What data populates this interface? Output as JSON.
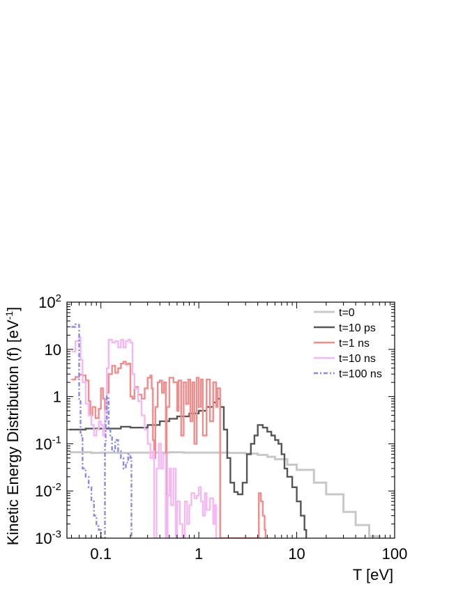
{
  "chart_data": {
    "type": "line",
    "title": "",
    "xlabel": "T [eV]",
    "ylabel_main": "Kinetic Energy Distribution (f) [eV",
    "ylabel_sup": "-1",
    "ylabel_end": "]",
    "xscale": "log",
    "yscale": "log",
    "xlim": [
      0.045,
      100
    ],
    "ylim": [
      0.001,
      100
    ],
    "x_ticks": [
      {
        "value": 0.1,
        "label": "0.1"
      },
      {
        "value": 1,
        "label": "1"
      },
      {
        "value": 10,
        "label": "10"
      },
      {
        "value": 100,
        "label": "100"
      }
    ],
    "y_ticks": [
      {
        "value": 0.001,
        "base": "10",
        "exp": "-3"
      },
      {
        "value": 0.01,
        "base": "10",
        "exp": "-2"
      },
      {
        "value": 0.1,
        "base": "10",
        "exp": "-1"
      },
      {
        "value": 1,
        "base": "1",
        "exp": ""
      },
      {
        "value": 10,
        "base": "10",
        "exp": ""
      },
      {
        "value": 100,
        "base": "10",
        "exp": "2"
      }
    ],
    "legend_position": "top-right",
    "grid": false,
    "series": [
      {
        "name": "t=0",
        "color": "#c8c8c8",
        "dash": "",
        "points": [
          [
            0.048,
            0.066
          ],
          [
            0.06,
            0.066
          ],
          [
            0.08,
            0.064
          ],
          [
            0.1,
            0.065
          ],
          [
            0.15,
            0.064
          ],
          [
            0.2,
            0.065
          ],
          [
            0.3,
            0.065
          ],
          [
            0.5,
            0.066
          ],
          [
            0.7,
            0.065
          ],
          [
            1,
            0.065
          ],
          [
            1.5,
            0.065
          ],
          [
            2,
            0.064
          ],
          [
            3,
            0.062
          ],
          [
            4,
            0.058
          ],
          [
            5,
            0.053
          ],
          [
            6,
            0.047
          ],
          [
            8,
            0.036
          ],
          [
            10,
            0.028
          ],
          [
            15,
            0.015
          ],
          [
            20,
            0.0085
          ],
          [
            30,
            0.0036
          ],
          [
            40,
            0.0019
          ],
          [
            55,
            0.0011
          ],
          [
            70,
            0.001
          ]
        ]
      },
      {
        "name": "t=10 ps",
        "color": "#555555",
        "dash": "",
        "points": [
          [
            0.048,
            0.2
          ],
          [
            0.07,
            0.21
          ],
          [
            0.1,
            0.21
          ],
          [
            0.13,
            0.21
          ],
          [
            0.16,
            0.23
          ],
          [
            0.2,
            0.22
          ],
          [
            0.25,
            0.22
          ],
          [
            0.3,
            0.25
          ],
          [
            0.4,
            0.3
          ],
          [
            0.5,
            0.34
          ],
          [
            0.6,
            0.38
          ],
          [
            0.8,
            0.44
          ],
          [
            1,
            0.5
          ],
          [
            1.2,
            0.6
          ],
          [
            1.4,
            0.75
          ],
          [
            1.55,
            0.9
          ],
          [
            1.65,
            0.6
          ],
          [
            1.8,
            0.2
          ],
          [
            1.95,
            0.05
          ],
          [
            2.1,
            0.015
          ],
          [
            2.3,
            0.0095
          ],
          [
            2.5,
            0.0085
          ],
          [
            2.8,
            0.015
          ],
          [
            3.1,
            0.06
          ],
          [
            3.4,
            0.1
          ],
          [
            3.7,
            0.15
          ],
          [
            4.0,
            0.25
          ],
          [
            4.5,
            0.22
          ],
          [
            5.0,
            0.18
          ],
          [
            5.5,
            0.15
          ],
          [
            6.0,
            0.12
          ],
          [
            6.5,
            0.1
          ],
          [
            7.0,
            0.06
          ],
          [
            7.5,
            0.03
          ],
          [
            8.0,
            0.02
          ],
          [
            9.0,
            0.012
          ],
          [
            10,
            0.006
          ],
          [
            11,
            0.003
          ],
          [
            12,
            0.0015
          ],
          [
            12.5,
            0.001
          ]
        ]
      },
      {
        "name": "t=1 ns",
        "color": "#f48b8b",
        "dash": "",
        "points": [
          [
            0.05,
            2.3
          ],
          [
            0.055,
            2.6
          ],
          [
            0.06,
            2.9
          ],
          [
            0.065,
            2.8
          ],
          [
            0.07,
            2.2
          ],
          [
            0.075,
            0.8
          ],
          [
            0.078,
            0.4
          ],
          [
            0.082,
            0.6
          ],
          [
            0.088,
            0.35
          ],
          [
            0.095,
            0.55
          ],
          [
            0.1,
            1.5
          ],
          [
            0.105,
            0.9
          ],
          [
            0.11,
            0.5
          ],
          [
            0.115,
            1.2
          ],
          [
            0.12,
            3.0
          ],
          [
            0.13,
            4.5
          ],
          [
            0.14,
            3.2
          ],
          [
            0.15,
            4.0
          ],
          [
            0.16,
            5.0
          ],
          [
            0.17,
            5.5
          ],
          [
            0.18,
            4.8
          ],
          [
            0.19,
            5.0
          ],
          [
            0.2,
            1.0
          ],
          [
            0.21,
            0.9
          ],
          [
            0.22,
            1.6
          ],
          [
            0.24,
            1.1
          ],
          [
            0.26,
            0.9
          ],
          [
            0.28,
            1.5
          ],
          [
            0.3,
            2.5
          ],
          [
            0.32,
            2.8
          ],
          [
            0.33,
            1.5
          ],
          [
            0.34,
            0.12
          ],
          [
            0.35,
            0.05
          ],
          [
            0.36,
            0.6
          ],
          [
            0.38,
            2.0
          ],
          [
            0.4,
            2.2
          ],
          [
            0.42,
            1.2
          ],
          [
            0.44,
            2.0
          ],
          [
            0.46,
            0.001
          ],
          [
            0.47,
            0.6
          ],
          [
            0.5,
            2.5
          ],
          [
            0.55,
            2.0
          ],
          [
            0.6,
            0.5
          ],
          [
            0.62,
            2.2
          ],
          [
            0.66,
            0.15
          ],
          [
            0.7,
            2.0
          ],
          [
            0.74,
            0.7
          ],
          [
            0.78,
            2.3
          ],
          [
            0.82,
            0.3
          ],
          [
            0.86,
            2.0
          ],
          [
            0.9,
            0.1
          ],
          [
            0.95,
            2.5
          ],
          [
            1.0,
            0.6
          ],
          [
            1.05,
            2.3
          ],
          [
            1.1,
            0.15
          ],
          [
            1.2,
            2.3
          ],
          [
            1.3,
            0.3
          ],
          [
            1.4,
            2.0
          ],
          [
            1.5,
            0.6
          ],
          [
            1.55,
            1.5
          ],
          [
            1.65,
            0.001
          ],
          [
            4.0,
            0.001
          ],
          [
            4.1,
            0.009
          ],
          [
            4.3,
            0.006
          ],
          [
            4.5,
            0.003
          ],
          [
            4.7,
            0.0015
          ],
          [
            4.8,
            0.001
          ]
        ]
      },
      {
        "name": "t=10 ns",
        "color": "#f5b8f2",
        "dash": "",
        "points": [
          [
            0.05,
            9.0
          ],
          [
            0.055,
            15.0
          ],
          [
            0.06,
            18.0
          ],
          [
            0.062,
            6.0
          ],
          [
            0.065,
            2.0
          ],
          [
            0.07,
            0.7
          ],
          [
            0.075,
            0.4
          ],
          [
            0.08,
            0.25
          ],
          [
            0.085,
            0.15
          ],
          [
            0.09,
            0.2
          ],
          [
            0.095,
            0.3
          ],
          [
            0.1,
            0.25
          ],
          [
            0.105,
            0.15
          ],
          [
            0.11,
            0.5
          ],
          [
            0.115,
            4.0
          ],
          [
            0.12,
            16.0
          ],
          [
            0.13,
            14.0
          ],
          [
            0.14,
            15.0
          ],
          [
            0.15,
            11.0
          ],
          [
            0.16,
            16.0
          ],
          [
            0.17,
            11.0
          ],
          [
            0.18,
            15.0
          ],
          [
            0.19,
            16.0
          ],
          [
            0.2,
            14.0
          ],
          [
            0.21,
            3.0
          ],
          [
            0.22,
            1.5
          ],
          [
            0.24,
            0.8
          ],
          [
            0.26,
            0.4
          ],
          [
            0.28,
            0.2
          ],
          [
            0.3,
            0.1
          ],
          [
            0.32,
            0.05
          ],
          [
            0.34,
            0.07
          ],
          [
            0.35,
            0.001
          ],
          [
            0.37,
            0.03
          ],
          [
            0.39,
            0.1
          ],
          [
            0.41,
            0.03
          ],
          [
            0.43,
            0.06
          ],
          [
            0.46,
            0.001
          ],
          [
            0.48,
            0.008
          ],
          [
            0.5,
            0.03
          ],
          [
            0.52,
            0.005
          ],
          [
            0.55,
            0.03
          ],
          [
            0.58,
            0.001
          ],
          [
            0.6,
            0.006
          ],
          [
            0.64,
            0.002
          ],
          [
            0.68,
            0.001
          ],
          [
            0.72,
            0.006
          ],
          [
            0.76,
            0.002
          ],
          [
            0.8,
            0.005
          ],
          [
            0.84,
            0.009
          ],
          [
            0.9,
            0.007
          ],
          [
            0.95,
            0.008
          ],
          [
            1.0,
            0.012
          ],
          [
            1.05,
            0.006
          ],
          [
            1.1,
            0.003
          ],
          [
            1.15,
            0.009
          ],
          [
            1.2,
            0.004
          ],
          [
            1.3,
            0.007
          ],
          [
            1.4,
            0.002
          ],
          [
            1.45,
            0.005
          ],
          [
            1.5,
            0.001
          ]
        ]
      },
      {
        "name": "t=100 ns",
        "color": "#8888ee",
        "dash": "6,3,2,3",
        "points": [
          [
            0.05,
            30.0
          ],
          [
            0.055,
            34.0
          ],
          [
            0.058,
            33.0
          ],
          [
            0.06,
            0.8
          ],
          [
            0.062,
            0.15
          ],
          [
            0.065,
            0.03
          ],
          [
            0.07,
            0.02
          ],
          [
            0.075,
            0.012
          ],
          [
            0.08,
            0.006
          ],
          [
            0.085,
            0.003
          ],
          [
            0.09,
            0.0018
          ],
          [
            0.095,
            0.0015
          ],
          [
            0.1,
            0.001
          ],
          [
            0.105,
            0.001
          ],
          [
            0.108,
            0.001
          ],
          [
            0.11,
            0.1
          ],
          [
            0.112,
            0.3
          ],
          [
            0.115,
            1.0
          ],
          [
            0.12,
            0.2
          ],
          [
            0.125,
            0.15
          ],
          [
            0.13,
            0.07
          ],
          [
            0.14,
            0.12
          ],
          [
            0.15,
            0.07
          ],
          [
            0.16,
            0.05
          ],
          [
            0.17,
            0.03
          ],
          [
            0.18,
            0.04
          ],
          [
            0.19,
            0.06
          ],
          [
            0.2,
            0.05
          ],
          [
            0.205,
            0.001
          ]
        ]
      }
    ]
  }
}
